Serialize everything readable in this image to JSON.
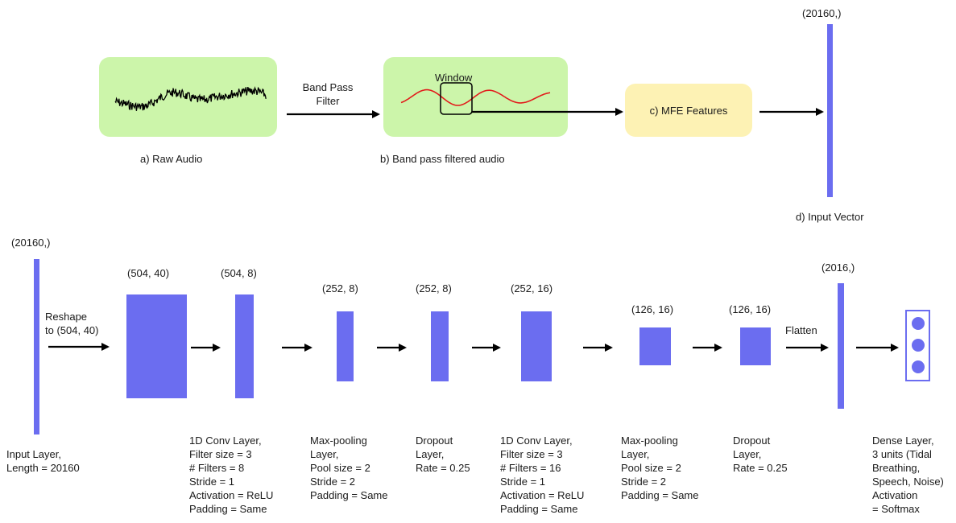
{
  "colors": {
    "layer": "#6b6df0",
    "green_box": "#ccf5aa",
    "yellow_box": "#fdf2b4",
    "wave": "#e21b1b",
    "arrow": "#000000"
  },
  "top": {
    "raw_caption": "a) Raw Audio",
    "filter_label": "Band Pass\nFilter",
    "bpf_caption": "b) Band pass filtered audio",
    "window_label": "Window",
    "mfe_label": "c) MFE Features",
    "vector_shape": "(20160,)",
    "vector_caption": "d) Input Vector"
  },
  "model": {
    "input_shape": "(20160,)",
    "reshape_label": "Reshape\nto (504, 40)",
    "input_caption": "Input Layer,\nLength = 20160",
    "shapes": [
      "(504, 40)",
      "(504, 8)",
      "(252, 8)",
      "(252, 8)",
      "(252, 16)",
      "(126, 16)",
      "(126, 16)",
      "(2016,)"
    ],
    "flatten_label": "Flatten",
    "captions": [
      "1D Conv Layer,\nFilter size = 3\n# Filters = 8\nStride = 1\nActivation = ReLU\nPadding = Same",
      "Max-pooling\nLayer,\nPool size = 2\nStride = 2\nPadding = Same",
      "Dropout\nLayer,\nRate = 0.25",
      "1D Conv Layer,\nFilter size = 3\n# Filters = 16\nStride = 1\nActivation = ReLU\nPadding = Same",
      "Max-pooling\nLayer,\nPool size = 2\nStride = 2\nPadding = Same",
      "Dropout\nLayer,\nRate = 0.25",
      "Dense Layer,\n3 units (Tidal\nBreathing,\nSpeech, Noise)\nActivation\n= Softmax"
    ]
  }
}
